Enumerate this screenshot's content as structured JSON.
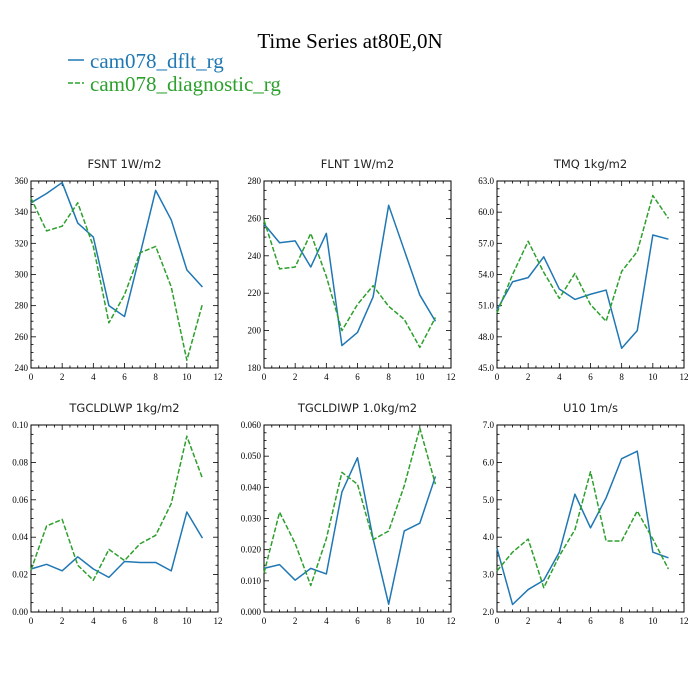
{
  "title": "Time Series at80E,0N",
  "colors": {
    "series1": "#1f77b4",
    "series2": "#2ca02c"
  },
  "legend": [
    {
      "name": "cam078_dflt_rg",
      "color": "#1f77b4",
      "dash": "solid"
    },
    {
      "name": "cam078_diagnostic_rg",
      "color": "#2ca02c",
      "dash": "dashed"
    }
  ],
  "chart_data": [
    {
      "type": "line",
      "title": "FSNT   1W/m2",
      "x": [
        0,
        1,
        2,
        3,
        4,
        5,
        6,
        7,
        8,
        9,
        10,
        11
      ],
      "xlim": [
        0,
        12
      ],
      "xticks": [
        "0",
        "2",
        "4",
        "6",
        "8",
        "10",
        "12"
      ],
      "ylim": [
        240,
        360
      ],
      "yticks": [
        "240",
        "260",
        "280",
        "300",
        "320",
        "340",
        "360"
      ],
      "series": [
        {
          "name": "cam078_dflt_rg",
          "values": [
            346,
            352,
            359,
            333,
            324,
            280,
            273,
            313,
            354,
            335,
            303,
            292
          ]
        },
        {
          "name": "cam078_diagnostic_rg",
          "values": [
            349,
            328,
            331,
            346,
            318,
            269,
            287,
            314,
            318,
            292,
            245,
            281
          ]
        }
      ]
    },
    {
      "type": "line",
      "title": "FLNT   1W/m2",
      "x": [
        0,
        1,
        2,
        3,
        4,
        5,
        6,
        7,
        8,
        9,
        10,
        11
      ],
      "xlim": [
        0,
        12
      ],
      "xticks": [
        "0",
        "2",
        "4",
        "6",
        "8",
        "10",
        "12"
      ],
      "ylim": [
        180,
        280
      ],
      "yticks": [
        "180",
        "200",
        "220",
        "240",
        "260",
        "280"
      ],
      "series": [
        {
          "name": "cam078_dflt_rg",
          "values": [
            257,
            247,
            248,
            234,
            252,
            192,
            199,
            218,
            267,
            243,
            219,
            205
          ]
        },
        {
          "name": "cam078_diagnostic_rg",
          "values": [
            259,
            233,
            234,
            252,
            229,
            200,
            214,
            224,
            213,
            206,
            191,
            207
          ]
        }
      ]
    },
    {
      "type": "line",
      "title": "TMQ   1kg/m2",
      "x": [
        0,
        1,
        2,
        3,
        4,
        5,
        6,
        7,
        8,
        9,
        10,
        11
      ],
      "xlim": [
        0,
        12
      ],
      "xticks": [
        "0",
        "2",
        "4",
        "6",
        "8",
        "10",
        "12"
      ],
      "ylim": [
        45,
        63
      ],
      "yticks": [
        "45.0",
        "48.0",
        "51.0",
        "54.0",
        "57.0",
        "60.0",
        "63.0"
      ],
      "series": [
        {
          "name": "cam078_dflt_rg",
          "values": [
            50.6,
            53.3,
            53.7,
            55.7,
            52.6,
            51.6,
            52.1,
            52.5,
            46.9,
            48.6,
            57.8,
            57.4
          ]
        },
        {
          "name": "cam078_diagnostic_rg",
          "values": [
            50.3,
            54.0,
            57.2,
            54.2,
            51.7,
            54.1,
            51.1,
            49.5,
            54.3,
            56.2,
            61.6,
            59.4
          ]
        }
      ]
    },
    {
      "type": "line",
      "title": "TGCLDLWP   1kg/m2",
      "x": [
        0,
        1,
        2,
        3,
        4,
        5,
        6,
        7,
        8,
        9,
        10,
        11
      ],
      "xlim": [
        0,
        12
      ],
      "xticks": [
        "0",
        "2",
        "4",
        "6",
        "8",
        "10",
        "12"
      ],
      "ylim": [
        0,
        0.1
      ],
      "yticks": [
        "0.00",
        "0.02",
        "0.04",
        "0.06",
        "0.08",
        "0.10"
      ],
      "series": [
        {
          "name": "cam078_dflt_rg",
          "values": [
            0.023,
            0.0255,
            0.022,
            0.0295,
            0.023,
            0.0185,
            0.027,
            0.0265,
            0.0265,
            0.022,
            0.0535,
            0.0395
          ]
        },
        {
          "name": "cam078_diagnostic_rg",
          "values": [
            0.0225,
            0.046,
            0.0495,
            0.025,
            0.017,
            0.0335,
            0.0275,
            0.0365,
            0.041,
            0.058,
            0.094,
            0.0715
          ]
        }
      ]
    },
    {
      "type": "line",
      "title": "TGCLDIWP   1.0kg/m2",
      "x": [
        0,
        1,
        2,
        3,
        4,
        5,
        6,
        7,
        8,
        9,
        10,
        11
      ],
      "xlim": [
        0,
        12
      ],
      "xticks": [
        "0",
        "2",
        "4",
        "6",
        "8",
        "10",
        "12"
      ],
      "ylim": [
        0,
        0.06
      ],
      "yticks": [
        "0.000",
        "0.010",
        "0.020",
        "0.030",
        "0.040",
        "0.050",
        "0.060"
      ],
      "series": [
        {
          "name": "cam078_dflt_rg",
          "values": [
            0.014,
            0.0152,
            0.0102,
            0.014,
            0.0122,
            0.0385,
            0.0495,
            0.0235,
            0.0025,
            0.026,
            0.0285,
            0.0435
          ]
        },
        {
          "name": "cam078_diagnostic_rg",
          "values": [
            0.0125,
            0.032,
            0.022,
            0.0085,
            0.0235,
            0.0448,
            0.041,
            0.0232,
            0.026,
            0.0405,
            0.059,
            0.041
          ]
        }
      ]
    },
    {
      "type": "line",
      "title": "U10   1m/s",
      "x": [
        0,
        1,
        2,
        3,
        4,
        5,
        6,
        7,
        8,
        9,
        10,
        11
      ],
      "xlim": [
        0,
        12
      ],
      "xticks": [
        "0",
        "2",
        "4",
        "6",
        "8",
        "10",
        "12"
      ],
      "ylim": [
        2,
        7
      ],
      "yticks": [
        "2.0",
        "3.0",
        "4.0",
        "5.0",
        "6.0",
        "7.0"
      ],
      "series": [
        {
          "name": "cam078_dflt_rg",
          "values": [
            3.7,
            2.2,
            2.6,
            2.85,
            3.6,
            5.15,
            4.25,
            5.05,
            6.1,
            6.3,
            3.6,
            3.45
          ]
        },
        {
          "name": "cam078_diagnostic_rg",
          "values": [
            3.1,
            3.6,
            3.95,
            2.65,
            3.5,
            4.2,
            5.75,
            3.9,
            3.9,
            4.7,
            3.95,
            3.15
          ]
        }
      ]
    }
  ]
}
